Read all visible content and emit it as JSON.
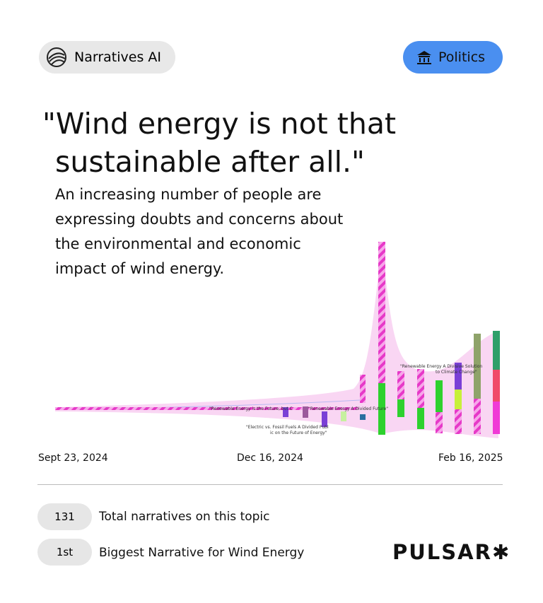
{
  "badge": "Narratives AI",
  "category": "Politics",
  "headline": [
    "\"Wind energy is not that",
    "sustainable after all.\""
  ],
  "description": [
    "An increasing number of people are",
    "expressing doubts and concerns about",
    "the environmental and economic",
    "impact of wind energy."
  ],
  "chart_labels": [
    "\"Renewable Energy is the Future, but C",
    "\"Renewable Energy A Divided Future\"",
    "\"Electric vs. Fossil Fuels A Divided Publ",
    "ic on the Future of Energy\"",
    "\"Renewable Energy A Divisive Solution",
    "to Climate Change\""
  ],
  "timeline": [
    "Sept 23, 2024",
    "Dec 16, 2024",
    "Feb 16, 2025"
  ],
  "stats": [
    {
      "value": "131",
      "label": "Total narratives on this topic"
    },
    {
      "value": "1st",
      "label": "Biggest Narrative for Wind Energy"
    }
  ],
  "brand": "PULSAR✱"
}
